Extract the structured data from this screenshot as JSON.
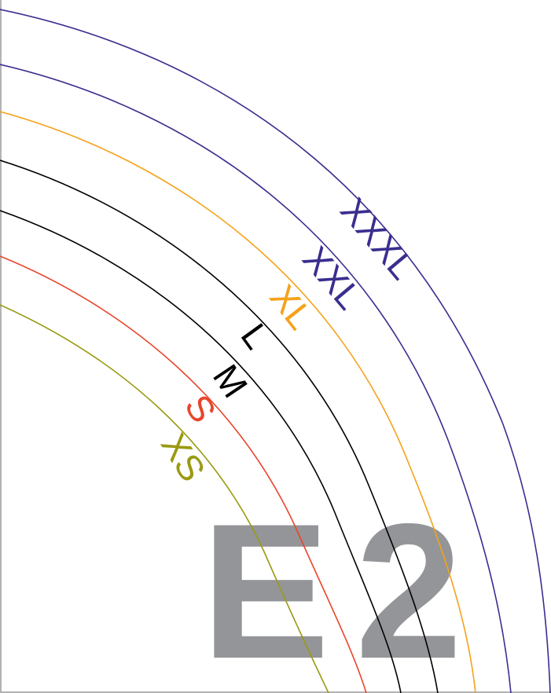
{
  "piece_id": {
    "letter": "E",
    "number": "2",
    "color": "#939598"
  },
  "sizes": [
    {
      "label": "XXXL",
      "color": "#3a2e8f"
    },
    {
      "label": "XXL",
      "color": "#3a2e8f"
    },
    {
      "label": "XL",
      "color": "#f5a21b"
    },
    {
      "label": "L",
      "color": "#000000"
    },
    {
      "label": "M",
      "color": "#000000"
    },
    {
      "label": "S",
      "color": "#e8452c"
    },
    {
      "label": "XS",
      "color": "#9a9a12"
    }
  ]
}
